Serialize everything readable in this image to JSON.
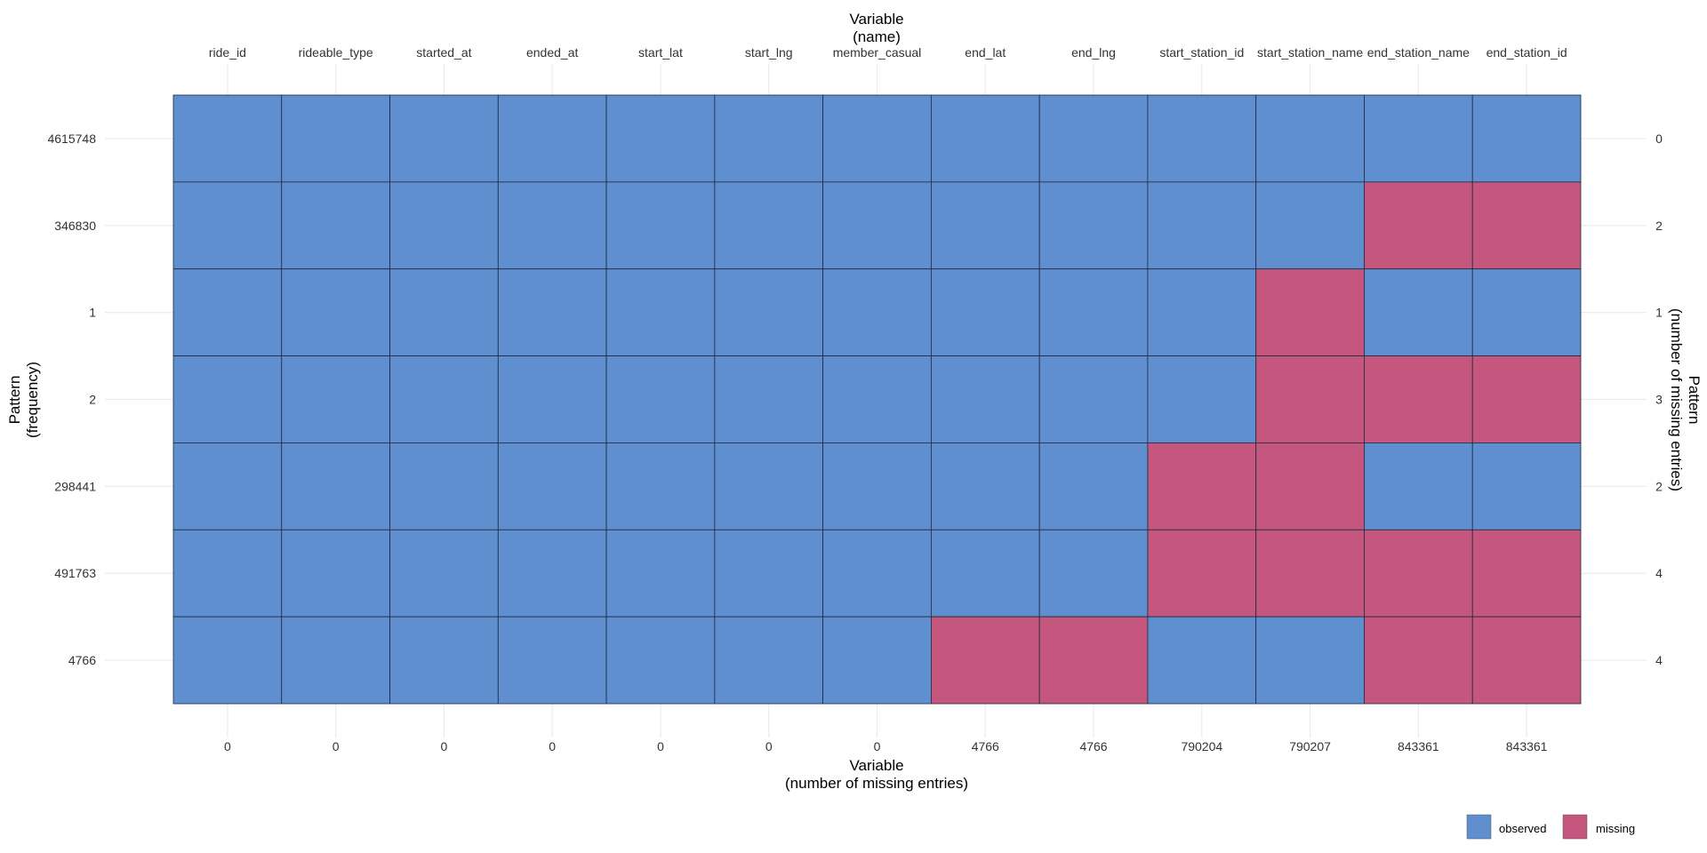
{
  "chart_data": {
    "type": "heatmap",
    "top_axis_title": [
      "Variable",
      "(name)"
    ],
    "bottom_axis_title": [
      "Variable",
      "(number of missing entries)"
    ],
    "left_axis_title": [
      "Pattern",
      "(frequency)"
    ],
    "right_axis_title": [
      "Pattern",
      "(number of missing entries)"
    ],
    "variables": [
      "ride_id",
      "rideable_type",
      "started_at",
      "ended_at",
      "start_lat",
      "start_lng",
      "member_casual",
      "end_lat",
      "end_lng",
      "start_station_id",
      "start_station_name",
      "end_station_name",
      "end_station_id"
    ],
    "missing_counts": [
      "0",
      "0",
      "0",
      "0",
      "0",
      "0",
      "0",
      "4766",
      "4766",
      "790204",
      "790207",
      "843361",
      "843361"
    ],
    "pattern_frequencies": [
      "4615748",
      "346830",
      "1",
      "2",
      "298441",
      "491763",
      "4766"
    ],
    "pattern_missing_counts": [
      "0",
      "2",
      "1",
      "3",
      "2",
      "4",
      "4"
    ],
    "patterns": [
      [
        0,
        0,
        0,
        0,
        0,
        0,
        0,
        0,
        0,
        0,
        0,
        0,
        0
      ],
      [
        0,
        0,
        0,
        0,
        0,
        0,
        0,
        0,
        0,
        0,
        0,
        1,
        1
      ],
      [
        0,
        0,
        0,
        0,
        0,
        0,
        0,
        0,
        0,
        0,
        1,
        0,
        0
      ],
      [
        0,
        0,
        0,
        0,
        0,
        0,
        0,
        0,
        0,
        0,
        1,
        1,
        1
      ],
      [
        0,
        0,
        0,
        0,
        0,
        0,
        0,
        0,
        0,
        1,
        1,
        0,
        0
      ],
      [
        0,
        0,
        0,
        0,
        0,
        0,
        0,
        0,
        0,
        1,
        1,
        1,
        1
      ],
      [
        0,
        0,
        0,
        0,
        0,
        0,
        0,
        1,
        1,
        0,
        0,
        1,
        1
      ]
    ],
    "legend": [
      {
        "label": "observed",
        "color": "#5f8fcf"
      },
      {
        "label": "missing",
        "color": "#c5577e"
      }
    ],
    "legend_placement": "bottom-right",
    "grid": true
  }
}
